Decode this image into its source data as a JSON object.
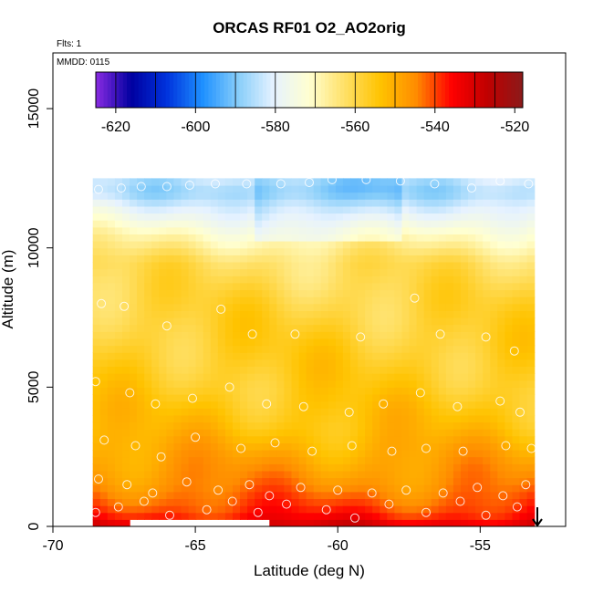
{
  "chart_data": {
    "type": "heatmap",
    "title": "ORCAS RF01 O2_AO2orig",
    "annotations": [
      "Flts: 1",
      "MMDD: 0115"
    ],
    "xlabel": "Latitude (deg N)",
    "ylabel": "Altitude (m)",
    "xlim": [
      -70,
      -52
    ],
    "ylim": [
      0,
      17000
    ],
    "x_ticks": [
      -70,
      -65,
      -60,
      -55
    ],
    "x_tick_labels": [
      "-70",
      "-65",
      "-60",
      "-55"
    ],
    "y_ticks": [
      0,
      5000,
      10000,
      15000
    ],
    "y_tick_labels": [
      "0",
      "5000",
      "10000",
      "15000"
    ],
    "colorbar": {
      "min": -625,
      "max": -518,
      "ticks": [
        -620,
        -600,
        -580,
        -560,
        -540,
        -520
      ],
      "tick_labels": [
        "-620",
        "-600",
        "-580",
        "-560",
        "-540",
        "-520"
      ],
      "colors": [
        "#8a2be2",
        "#0000a0",
        "#0033dd",
        "#1e90ff",
        "#87cefa",
        "#e6f2ff",
        "#ffffd0",
        "#ffe066",
        "#ffc300",
        "#ff8c00",
        "#ff0000",
        "#c00000",
        "#8b1a1a"
      ],
      "breaks": [
        -625,
        -620,
        -610,
        -600,
        -590,
        -580,
        -570,
        -560,
        -550,
        -540,
        -530,
        -525,
        -518
      ]
    },
    "profile": {
      "altitudes": [
        0,
        300,
        700,
        1500,
        2500,
        3500,
        5000,
        6500,
        8000,
        9500,
        10500,
        11500,
        12000,
        12500
      ],
      "values": [
        -530,
        -536,
        -540,
        -545,
        -549,
        -553,
        -556,
        -557,
        -559,
        -562,
        -570,
        -580,
        -586,
        -583
      ]
    },
    "lat_extent": [
      -68.6,
      -53.1
    ],
    "alt_top": 12500,
    "observation_points": [
      [
        -68.4,
        12100
      ],
      [
        -67.6,
        12150
      ],
      [
        -66.9,
        12200
      ],
      [
        -66.0,
        12200
      ],
      [
        -65.2,
        12250
      ],
      [
        -64.3,
        12300
      ],
      [
        -63.2,
        12300
      ],
      [
        -62.0,
        12300
      ],
      [
        -61.0,
        12350
      ],
      [
        -60.2,
        12450
      ],
      [
        -59.0,
        12450
      ],
      [
        -57.8,
        12400
      ],
      [
        -56.6,
        12300
      ],
      [
        -55.3,
        12150
      ],
      [
        -54.3,
        12400
      ],
      [
        -53.3,
        12300
      ],
      [
        -68.3,
        8000
      ],
      [
        -67.5,
        7900
      ],
      [
        -66.0,
        7200
      ],
      [
        -64.1,
        7800
      ],
      [
        -63.0,
        6900
      ],
      [
        -61.5,
        6900
      ],
      [
        -59.2,
        6800
      ],
      [
        -57.3,
        8200
      ],
      [
        -56.4,
        6900
      ],
      [
        -54.8,
        6800
      ],
      [
        -53.8,
        6300
      ],
      [
        -68.5,
        5200
      ],
      [
        -67.3,
        4800
      ],
      [
        -66.4,
        4400
      ],
      [
        -65.1,
        4600
      ],
      [
        -63.8,
        5000
      ],
      [
        -62.5,
        4400
      ],
      [
        -61.2,
        4300
      ],
      [
        -59.6,
        4100
      ],
      [
        -58.4,
        4400
      ],
      [
        -57.1,
        4800
      ],
      [
        -55.8,
        4300
      ],
      [
        -54.3,
        4500
      ],
      [
        -53.6,
        4100
      ],
      [
        -68.2,
        3100
      ],
      [
        -67.1,
        2900
      ],
      [
        -66.2,
        2500
      ],
      [
        -65.0,
        3200
      ],
      [
        -63.4,
        2800
      ],
      [
        -62.2,
        3000
      ],
      [
        -60.9,
        2700
      ],
      [
        -59.5,
        2900
      ],
      [
        -58.1,
        2700
      ],
      [
        -56.9,
        2800
      ],
      [
        -55.6,
        2700
      ],
      [
        -54.1,
        2900
      ],
      [
        -53.2,
        2800
      ],
      [
        -68.4,
        1700
      ],
      [
        -67.4,
        1500
      ],
      [
        -66.5,
        1200
      ],
      [
        -65.3,
        1600
      ],
      [
        -64.2,
        1300
      ],
      [
        -63.1,
        1500
      ],
      [
        -62.4,
        1100
      ],
      [
        -61.3,
        1400
      ],
      [
        -60.0,
        1300
      ],
      [
        -58.8,
        1200
      ],
      [
        -57.6,
        1300
      ],
      [
        -56.3,
        1200
      ],
      [
        -55.1,
        1400
      ],
      [
        -54.2,
        1100
      ],
      [
        -53.4,
        1500
      ],
      [
        -68.5,
        500
      ],
      [
        -67.7,
        700
      ],
      [
        -66.8,
        900
      ],
      [
        -65.9,
        400
      ],
      [
        -64.6,
        600
      ],
      [
        -63.7,
        900
      ],
      [
        -62.8,
        500
      ],
      [
        -61.8,
        800
      ],
      [
        -60.4,
        600
      ],
      [
        -59.4,
        300
      ],
      [
        -58.2,
        800
      ],
      [
        -56.9,
        500
      ],
      [
        -55.7,
        900
      ],
      [
        -54.8,
        400
      ],
      [
        -53.7,
        700
      ]
    ]
  }
}
